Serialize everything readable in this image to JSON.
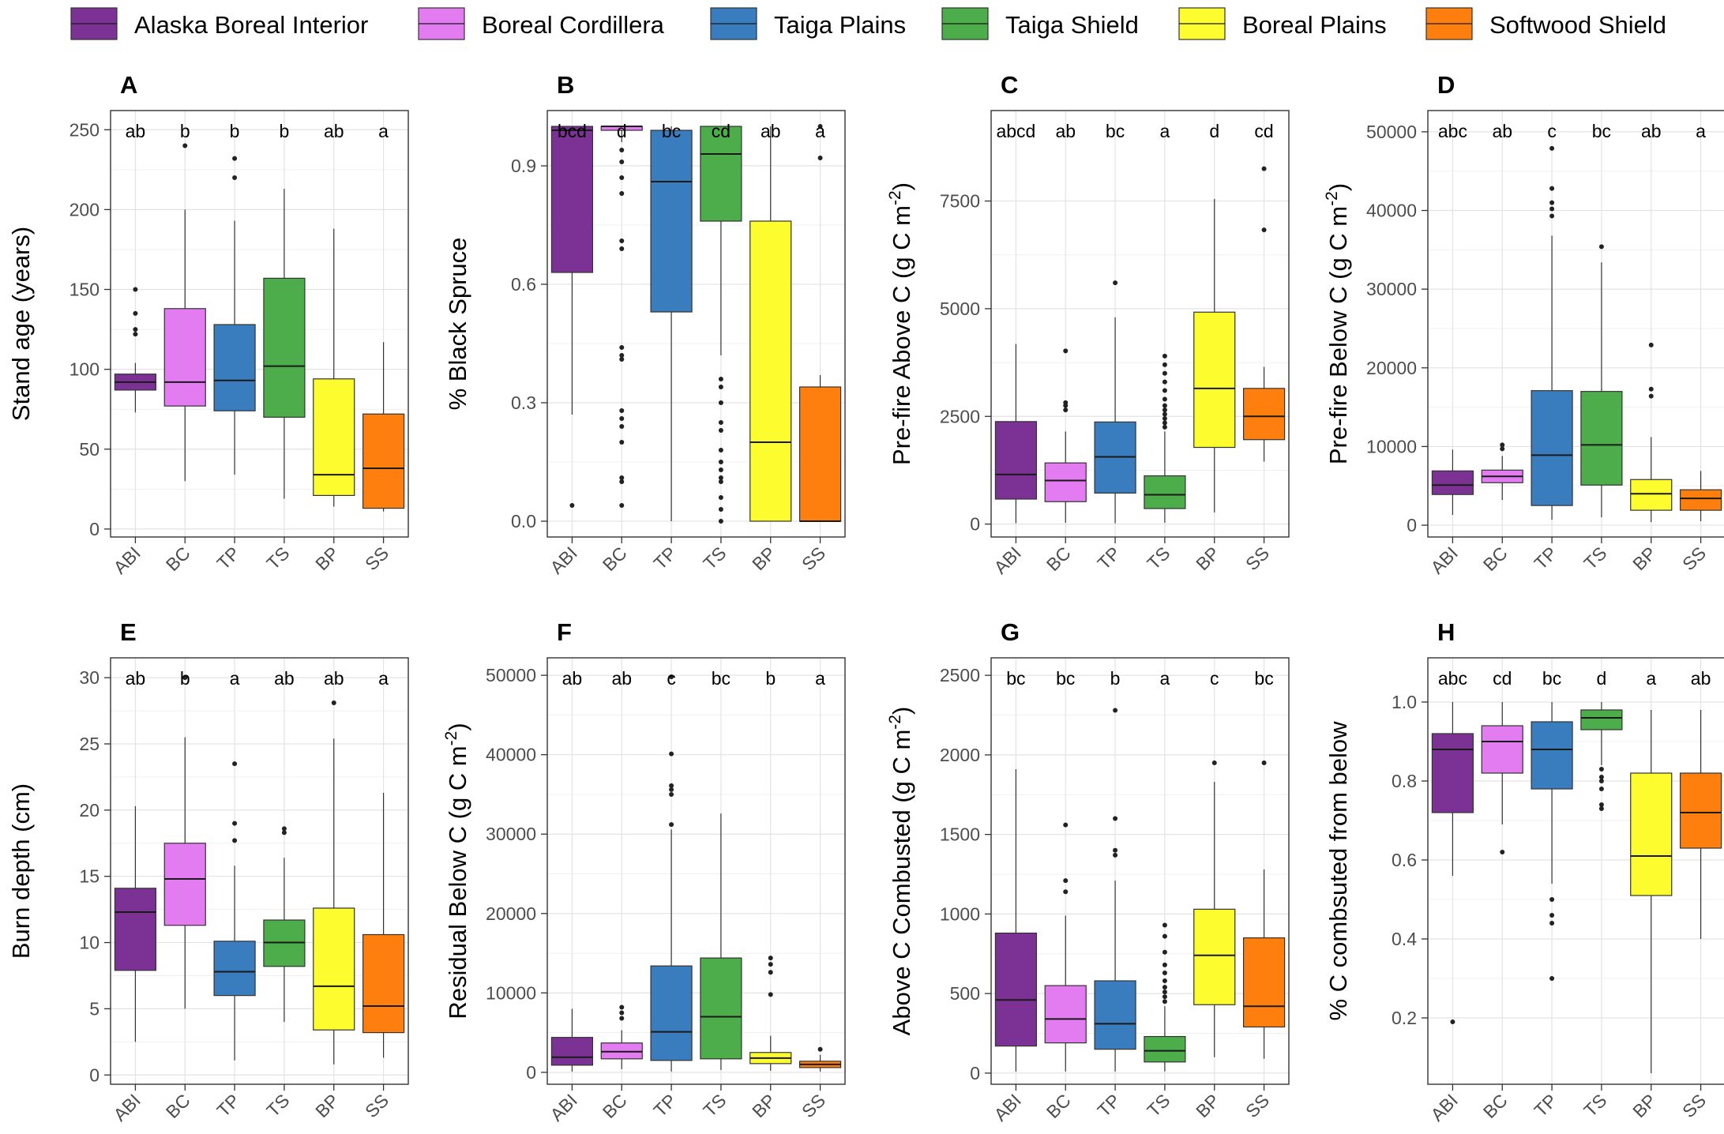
{
  "legend": [
    {
      "abbr": "ABI",
      "label": "Alaska Boreal Interior",
      "color": "#7b3294"
    },
    {
      "abbr": "BC",
      "label": "Boreal Cordillera",
      "color": "#e27cf0"
    },
    {
      "abbr": "TP",
      "label": "Taiga Plains",
      "color": "#3a7dbe"
    },
    {
      "abbr": "TS",
      "label": "Taiga Shield",
      "color": "#4cad4a"
    },
    {
      "abbr": "BP",
      "label": "Boreal Plains",
      "color": "#fcfc2e"
    },
    {
      "abbr": "SS",
      "label": "Softwood Shield",
      "color": "#ff7f0e"
    }
  ],
  "chart_data": [
    {
      "panel": "A",
      "type": "box",
      "ylabel": "Stand age (years)",
      "ylabel_sup": "",
      "ylabel_tail": "",
      "ylim": [
        -5,
        262
      ],
      "yticks": [
        0,
        50,
        100,
        150,
        200,
        250
      ],
      "yticklabels": [
        "0",
        "50",
        "100",
        "150",
        "200",
        "250"
      ],
      "categories": [
        "ABI",
        "BC",
        "TP",
        "TS",
        "BP",
        "SS"
      ],
      "letters": [
        "ab",
        "b",
        "b",
        "b",
        "ab",
        "a"
      ],
      "boxes": [
        {
          "min": 73,
          "q1": 87,
          "median": 92,
          "q3": 97,
          "max": 104,
          "outliers": [
            122,
            125,
            135,
            150
          ]
        },
        {
          "min": 30,
          "q1": 77,
          "median": 92,
          "q3": 138,
          "max": 200,
          "outliers": [
            240
          ]
        },
        {
          "min": 34,
          "q1": 74,
          "median": 93,
          "q3": 128,
          "max": 193,
          "outliers": [
            220,
            232
          ]
        },
        {
          "min": 19,
          "q1": 70,
          "median": 102,
          "q3": 157,
          "max": 213,
          "outliers": []
        },
        {
          "min": 14,
          "q1": 21,
          "median": 34,
          "q3": 94,
          "max": 188,
          "outliers": []
        },
        {
          "min": 11,
          "q1": 13,
          "median": 38,
          "q3": 72,
          "max": 117,
          "outliers": []
        }
      ]
    },
    {
      "panel": "B",
      "type": "box",
      "ylabel": "% Black Spruce",
      "ylabel_sup": "",
      "ylabel_tail": "",
      "ylim": [
        -0.04,
        1.04
      ],
      "yticks": [
        0,
        0.3,
        0.6,
        0.9
      ],
      "yticklabels": [
        "0.0",
        "0.3",
        "0.6",
        "0.9"
      ],
      "categories": [
        "ABI",
        "BC",
        "TP",
        "TS",
        "BP",
        "SS"
      ],
      "letters": [
        "bcd",
        "d",
        "bc",
        "cd",
        "ab",
        "a"
      ],
      "boxes": [
        {
          "min": 0.27,
          "q1": 0.63,
          "median": 0.99,
          "q3": 1.0,
          "max": 1.0,
          "outliers": [
            0.04
          ]
        },
        {
          "min": 0.96,
          "q1": 0.99,
          "median": 1.0,
          "q3": 1.0,
          "max": 1.0,
          "outliers": [
            0.94,
            0.91,
            0.87,
            0.83,
            0.71,
            0.69,
            0.44,
            0.42,
            0.41,
            0.28,
            0.26,
            0.24,
            0.2,
            0.11,
            0.1,
            0.04
          ]
        },
        {
          "min": 0.0,
          "q1": 0.53,
          "median": 0.86,
          "q3": 0.99,
          "max": 1.0,
          "outliers": []
        },
        {
          "min": 0.42,
          "q1": 0.76,
          "median": 0.93,
          "q3": 1.0,
          "max": 1.0,
          "outliers": [
            0.36,
            0.34,
            0.3,
            0.25,
            0.23,
            0.18,
            0.15,
            0.13,
            0.11,
            0.1,
            0.06,
            0.03,
            0.0
          ]
        },
        {
          "min": 0.0,
          "q1": 0.0,
          "median": 0.2,
          "q3": 0.76,
          "max": 1.0,
          "outliers": []
        },
        {
          "min": 0.0,
          "q1": 0.0,
          "median": 0.0,
          "q3": 0.34,
          "max": 0.37,
          "outliers": [
            0.92,
            1.0
          ]
        }
      ]
    },
    {
      "panel": "C",
      "type": "box",
      "ylabel": "Pre-fire Above C (g C m",
      "ylabel_sup": "-2",
      "ylabel_tail": ")",
      "ylim": [
        -300,
        9600
      ],
      "yticks": [
        0,
        2500,
        5000,
        7500
      ],
      "yticklabels": [
        "0",
        "2500",
        "5000",
        "7500"
      ],
      "categories": [
        "ABI",
        "BC",
        "TP",
        "TS",
        "BP",
        "SS"
      ],
      "letters": [
        "abcd",
        "ab",
        "bc",
        "a",
        "d",
        "cd"
      ],
      "boxes": [
        {
          "min": 20,
          "q1": 580,
          "median": 1150,
          "q3": 2380,
          "max": 4180,
          "outliers": []
        },
        {
          "min": 30,
          "q1": 520,
          "median": 1010,
          "q3": 1420,
          "max": 2150,
          "outliers": [
            2650,
            2750,
            2820,
            4020
          ]
        },
        {
          "min": 20,
          "q1": 720,
          "median": 1560,
          "q3": 2370,
          "max": 4800,
          "outliers": [
            5600
          ]
        },
        {
          "min": 30,
          "q1": 360,
          "median": 680,
          "q3": 1120,
          "max": 2150,
          "outliers": [
            2250,
            2350,
            2450,
            2550,
            2650,
            2750,
            2900,
            3100,
            3300,
            3500,
            3700,
            3900
          ]
        },
        {
          "min": 270,
          "q1": 1780,
          "median": 3150,
          "q3": 4920,
          "max": 7550,
          "outliers": []
        },
        {
          "min": 1450,
          "q1": 1960,
          "median": 2500,
          "q3": 3150,
          "max": 3650,
          "outliers": [
            6830,
            8250
          ]
        }
      ]
    },
    {
      "panel": "D",
      "type": "box",
      "ylabel": "Pre-fire Below C (g C m",
      "ylabel_sup": "-2",
      "ylabel_tail": ")",
      "ylim": [
        -1500,
        52700
      ],
      "yticks": [
        0,
        10000,
        20000,
        30000,
        40000,
        50000
      ],
      "yticklabels": [
        "0",
        "10000",
        "20000",
        "30000",
        "40000",
        "50000"
      ],
      "categories": [
        "ABI",
        "BC",
        "TP",
        "TS",
        "BP",
        "SS"
      ],
      "letters": [
        "abc",
        "ab",
        "c",
        "bc",
        "ab",
        "a"
      ],
      "boxes": [
        {
          "min": 1300,
          "q1": 3900,
          "median": 5100,
          "q3": 6900,
          "max": 9600,
          "outliers": []
        },
        {
          "min": 3200,
          "q1": 5400,
          "median": 6200,
          "q3": 7000,
          "max": 8800,
          "outliers": [
            9700,
            10200
          ]
        },
        {
          "min": 700,
          "q1": 2500,
          "median": 8900,
          "q3": 17100,
          "max": 36800,
          "outliers": [
            39300,
            40200,
            41000,
            42800,
            47900
          ]
        },
        {
          "min": 1000,
          "q1": 5100,
          "median": 10200,
          "q3": 17000,
          "max": 33400,
          "outliers": [
            35400
          ]
        },
        {
          "min": 400,
          "q1": 1900,
          "median": 4000,
          "q3": 5800,
          "max": 11200,
          "outliers": [
            16400,
            17300,
            22900
          ]
        },
        {
          "min": 500,
          "q1": 1900,
          "median": 3400,
          "q3": 4500,
          "max": 6900,
          "outliers": []
        }
      ]
    },
    {
      "panel": "E",
      "type": "box",
      "ylabel": "Burn depth (cm)",
      "ylabel_sup": "",
      "ylabel_tail": "",
      "ylim": [
        -0.7,
        31.5
      ],
      "yticks": [
        0,
        5,
        10,
        15,
        20,
        25,
        30
      ],
      "yticklabels": [
        "0",
        "5",
        "10",
        "15",
        "20",
        "25",
        "30"
      ],
      "categories": [
        "ABI",
        "BC",
        "TP",
        "TS",
        "BP",
        "SS"
      ],
      "letters": [
        "ab",
        "b",
        "a",
        "ab",
        "ab",
        "a"
      ],
      "boxes": [
        {
          "min": 2.5,
          "q1": 7.9,
          "median": 12.3,
          "q3": 14.1,
          "max": 20.3,
          "outliers": []
        },
        {
          "min": 5.0,
          "q1": 11.3,
          "median": 14.8,
          "q3": 17.5,
          "max": 25.5,
          "outliers": [
            30.0
          ]
        },
        {
          "min": 1.1,
          "q1": 6.0,
          "median": 7.8,
          "q3": 10.1,
          "max": 15.8,
          "outliers": [
            17.7,
            19.0,
            23.5
          ]
        },
        {
          "min": 4.0,
          "q1": 8.2,
          "median": 10.0,
          "q3": 11.7,
          "max": 16.4,
          "outliers": [
            18.3,
            18.6
          ]
        },
        {
          "min": 0.8,
          "q1": 3.4,
          "median": 6.7,
          "q3": 12.6,
          "max": 25.4,
          "outliers": [
            28.1
          ]
        },
        {
          "min": 1.3,
          "q1": 3.2,
          "median": 5.2,
          "q3": 10.6,
          "max": 21.3,
          "outliers": []
        }
      ]
    },
    {
      "panel": "F",
      "type": "box",
      "ylabel": "Residual Below C (g C m",
      "ylabel_sup": "-2",
      "ylabel_tail": ")",
      "ylim": [
        -1500,
        52200
      ],
      "yticks": [
        0,
        10000,
        20000,
        30000,
        40000,
        50000
      ],
      "yticklabels": [
        "0",
        "10000",
        "20000",
        "30000",
        "40000",
        "50000"
      ],
      "categories": [
        "ABI",
        "BC",
        "TP",
        "TS",
        "BP",
        "SS"
      ],
      "letters": [
        "ab",
        "ab",
        "c",
        "bc",
        "b",
        "a"
      ],
      "boxes": [
        {
          "min": 100,
          "q1": 900,
          "median": 1900,
          "q3": 4400,
          "max": 8000,
          "outliers": []
        },
        {
          "min": 400,
          "q1": 1700,
          "median": 2600,
          "q3": 3700,
          "max": 5300,
          "outliers": [
            6800,
            7500,
            8200
          ]
        },
        {
          "min": 100,
          "q1": 1500,
          "median": 5100,
          "q3": 13400,
          "max": 30600,
          "outliers": [
            31200,
            35000,
            35600,
            36100,
            40100,
            49800
          ]
        },
        {
          "min": 300,
          "q1": 1700,
          "median": 7000,
          "q3": 14400,
          "max": 32600,
          "outliers": []
        },
        {
          "min": 200,
          "q1": 1100,
          "median": 1800,
          "q3": 2500,
          "max": 4600,
          "outliers": [
            9800,
            12600,
            13600,
            14400
          ]
        },
        {
          "min": 100,
          "q1": 600,
          "median": 1000,
          "q3": 1400,
          "max": 2200,
          "outliers": [
            2900
          ]
        }
      ]
    },
    {
      "panel": "G",
      "type": "box",
      "ylabel": "Above C Combusted (g C m",
      "ylabel_sup": "-2",
      "ylabel_tail": ")",
      "ylim": [
        -70,
        2610
      ],
      "yticks": [
        0,
        500,
        1000,
        1500,
        2000,
        2500
      ],
      "yticklabels": [
        "0",
        "500",
        "1000",
        "1500",
        "2000",
        "2500"
      ],
      "categories": [
        "ABI",
        "BC",
        "TP",
        "TS",
        "BP",
        "SS"
      ],
      "letters": [
        "bc",
        "bc",
        "b",
        "a",
        "c",
        "bc"
      ],
      "boxes": [
        {
          "min": 10,
          "q1": 170,
          "median": 460,
          "q3": 880,
          "max": 1910,
          "outliers": []
        },
        {
          "min": 10,
          "q1": 190,
          "median": 340,
          "q3": 550,
          "max": 990,
          "outliers": [
            1140,
            1210,
            1560
          ]
        },
        {
          "min": 10,
          "q1": 150,
          "median": 310,
          "q3": 580,
          "max": 1210,
          "outliers": [
            1370,
            1400,
            1600,
            2280
          ]
        },
        {
          "min": 10,
          "q1": 70,
          "median": 140,
          "q3": 230,
          "max": 420,
          "outliers": [
            450,
            480,
            510,
            540,
            580,
            630,
            680,
            760,
            860,
            930
          ]
        },
        {
          "min": 100,
          "q1": 430,
          "median": 740,
          "q3": 1030,
          "max": 1830,
          "outliers": [
            1950
          ]
        },
        {
          "min": 90,
          "q1": 290,
          "median": 420,
          "q3": 850,
          "max": 1280,
          "outliers": [
            1950
          ]
        }
      ]
    },
    {
      "panel": "H",
      "type": "box",
      "ylabel": "% C combsuted from below",
      "ylabel_sup": "",
      "ylabel_tail": "",
      "ylim": [
        0.032,
        1.112
      ],
      "yticks": [
        0.2,
        0.4,
        0.6,
        0.8,
        1.0
      ],
      "yticklabels": [
        "0.2",
        "0.4",
        "0.6",
        "0.8",
        "1.0"
      ],
      "categories": [
        "ABI",
        "BC",
        "TP",
        "TS",
        "BP",
        "SS"
      ],
      "letters": [
        "abc",
        "cd",
        "bc",
        "d",
        "a",
        "ab"
      ],
      "boxes": [
        {
          "min": 0.56,
          "q1": 0.72,
          "median": 0.88,
          "q3": 0.92,
          "max": 1.0,
          "outliers": [
            0.19
          ]
        },
        {
          "min": 0.69,
          "q1": 0.82,
          "median": 0.9,
          "q3": 0.94,
          "max": 1.0,
          "outliers": [
            0.62
          ]
        },
        {
          "min": 0.54,
          "q1": 0.78,
          "median": 0.88,
          "q3": 0.95,
          "max": 1.0,
          "outliers": [
            0.5,
            0.46,
            0.44,
            0.3
          ]
        },
        {
          "min": 0.84,
          "q1": 0.93,
          "median": 0.96,
          "q3": 0.98,
          "max": 1.0,
          "outliers": [
            0.83,
            0.81,
            0.8,
            0.78,
            0.74,
            0.73
          ]
        },
        {
          "min": 0.06,
          "q1": 0.51,
          "median": 0.61,
          "q3": 0.82,
          "max": 0.98,
          "outliers": []
        },
        {
          "min": 0.4,
          "q1": 0.63,
          "median": 0.72,
          "q3": 0.82,
          "max": 0.98,
          "outliers": []
        }
      ]
    }
  ]
}
